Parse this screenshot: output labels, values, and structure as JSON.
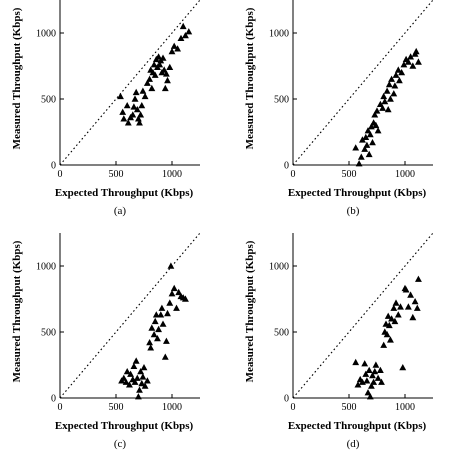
{
  "chart_data": [
    {
      "type": "scatter",
      "caption": "(a)",
      "xlabel": "Expected Throughput (Kbps)",
      "ylabel": "Measured Throughput (Kbps)",
      "xlim": [
        0,
        1250
      ],
      "ylim": [
        0,
        1250
      ],
      "xticks": [
        0,
        500,
        1000
      ],
      "yticks": [
        0,
        500,
        1000
      ],
      "reference_line": "y = x (dotted)",
      "grid": false,
      "marker": "filled-triangle",
      "points": [
        [
          540,
          520
        ],
        [
          560,
          400
        ],
        [
          570,
          350
        ],
        [
          600,
          450
        ],
        [
          610,
          320
        ],
        [
          630,
          360
        ],
        [
          650,
          380
        ],
        [
          660,
          440
        ],
        [
          670,
          500
        ],
        [
          680,
          550
        ],
        [
          690,
          420
        ],
        [
          700,
          350
        ],
        [
          710,
          320
        ],
        [
          720,
          380
        ],
        [
          730,
          450
        ],
        [
          740,
          560
        ],
        [
          760,
          520
        ],
        [
          780,
          620
        ],
        [
          800,
          650
        ],
        [
          810,
          720
        ],
        [
          820,
          580
        ],
        [
          830,
          700
        ],
        [
          840,
          760
        ],
        [
          850,
          680
        ],
        [
          860,
          800
        ],
        [
          870,
          740
        ],
        [
          880,
          820
        ],
        [
          890,
          760
        ],
        [
          900,
          790
        ],
        [
          910,
          700
        ],
        [
          920,
          810
        ],
        [
          930,
          720
        ],
        [
          940,
          580
        ],
        [
          950,
          690
        ],
        [
          960,
          640
        ],
        [
          980,
          740
        ],
        [
          1000,
          860
        ],
        [
          1020,
          900
        ],
        [
          1050,
          880
        ],
        [
          1080,
          960
        ],
        [
          1100,
          1050
        ],
        [
          1120,
          980
        ],
        [
          1150,
          1010
        ]
      ]
    },
    {
      "type": "scatter",
      "caption": "(b)",
      "xlabel": "Expected Throughput (Kbps)",
      "ylabel": "Measured Throughput (Kbps)",
      "xlim": [
        0,
        1250
      ],
      "ylim": [
        0,
        1250
      ],
      "xticks": [
        0,
        500,
        1000
      ],
      "yticks": [
        0,
        500,
        1000
      ],
      "reference_line": "y = x (dotted)",
      "grid": false,
      "marker": "filled-triangle",
      "points": [
        [
          560,
          130
        ],
        [
          590,
          10
        ],
        [
          610,
          60
        ],
        [
          620,
          190
        ],
        [
          640,
          120
        ],
        [
          650,
          210
        ],
        [
          660,
          150
        ],
        [
          670,
          260
        ],
        [
          680,
          80
        ],
        [
          690,
          230
        ],
        [
          700,
          290
        ],
        [
          710,
          170
        ],
        [
          720,
          320
        ],
        [
          730,
          380
        ],
        [
          740,
          300
        ],
        [
          750,
          410
        ],
        [
          760,
          260
        ],
        [
          780,
          460
        ],
        [
          800,
          430
        ],
        [
          810,
          520
        ],
        [
          820,
          480
        ],
        [
          840,
          560
        ],
        [
          850,
          420
        ],
        [
          860,
          610
        ],
        [
          870,
          500
        ],
        [
          880,
          650
        ],
        [
          900,
          540
        ],
        [
          910,
          600
        ],
        [
          920,
          680
        ],
        [
          940,
          720
        ],
        [
          950,
          640
        ],
        [
          970,
          700
        ],
        [
          990,
          760
        ],
        [
          1010,
          800
        ],
        [
          1030,
          780
        ],
        [
          1050,
          820
        ],
        [
          1070,
          750
        ],
        [
          1090,
          840
        ],
        [
          1100,
          860
        ],
        [
          1120,
          780
        ]
      ]
    },
    {
      "type": "scatter",
      "caption": "(c)",
      "xlabel": "Expected Throughput (Kbps)",
      "ylabel": "Measured Throughput (Kbps)",
      "xlim": [
        0,
        1250
      ],
      "ylim": [
        0,
        1250
      ],
      "xticks": [
        0,
        500,
        1000
      ],
      "yticks": [
        0,
        500,
        1000
      ],
      "reference_line": "y = x (dotted)",
      "grid": false,
      "marker": "filled-triangle",
      "points": [
        [
          550,
          130
        ],
        [
          570,
          150
        ],
        [
          590,
          120
        ],
        [
          600,
          200
        ],
        [
          620,
          100
        ],
        [
          630,
          180
        ],
        [
          650,
          140
        ],
        [
          660,
          240
        ],
        [
          670,
          120
        ],
        [
          680,
          280
        ],
        [
          690,
          150
        ],
        [
          700,
          10
        ],
        [
          710,
          60
        ],
        [
          720,
          200
        ],
        [
          730,
          110
        ],
        [
          740,
          160
        ],
        [
          750,
          230
        ],
        [
          760,
          90
        ],
        [
          780,
          130
        ],
        [
          800,
          420
        ],
        [
          810,
          380
        ],
        [
          820,
          530
        ],
        [
          840,
          480
        ],
        [
          850,
          580
        ],
        [
          860,
          630
        ],
        [
          870,
          450
        ],
        [
          880,
          520
        ],
        [
          900,
          630
        ],
        [
          910,
          680
        ],
        [
          920,
          560
        ],
        [
          940,
          310
        ],
        [
          950,
          430
        ],
        [
          960,
          640
        ],
        [
          980,
          720
        ],
        [
          990,
          1000
        ],
        [
          1000,
          790
        ],
        [
          1020,
          830
        ],
        [
          1040,
          680
        ],
        [
          1060,
          800
        ],
        [
          1080,
          770
        ],
        [
          1100,
          760
        ],
        [
          1120,
          750
        ]
      ]
    },
    {
      "type": "scatter",
      "caption": "(d)",
      "xlabel": "Expected Throughput (Kbps)",
      "ylabel": "Measured Throughput (Kbps)",
      "xlim": [
        0,
        1250
      ],
      "ylim": [
        0,
        1250
      ],
      "xticks": [
        0,
        500,
        1000
      ],
      "yticks": [
        0,
        500,
        1000
      ],
      "reference_line": "y = x (dotted)",
      "grid": false,
      "marker": "filled-triangle",
      "points": [
        [
          560,
          270
        ],
        [
          580,
          100
        ],
        [
          600,
          140
        ],
        [
          620,
          120
        ],
        [
          640,
          260
        ],
        [
          650,
          180
        ],
        [
          660,
          130
        ],
        [
          670,
          40
        ],
        [
          680,
          210
        ],
        [
          690,
          10
        ],
        [
          700,
          90
        ],
        [
          710,
          170
        ],
        [
          720,
          120
        ],
        [
          730,
          200
        ],
        [
          740,
          250
        ],
        [
          760,
          150
        ],
        [
          780,
          210
        ],
        [
          790,
          120
        ],
        [
          810,
          400
        ],
        [
          820,
          500
        ],
        [
          830,
          560
        ],
        [
          840,
          480
        ],
        [
          850,
          620
        ],
        [
          860,
          550
        ],
        [
          870,
          440
        ],
        [
          880,
          600
        ],
        [
          900,
          680
        ],
        [
          910,
          580
        ],
        [
          920,
          720
        ],
        [
          940,
          630
        ],
        [
          960,
          690
        ],
        [
          980,
          230
        ],
        [
          1000,
          830
        ],
        [
          1010,
          820
        ],
        [
          1030,
          690
        ],
        [
          1050,
          780
        ],
        [
          1070,
          610
        ],
        [
          1090,
          730
        ],
        [
          1110,
          680
        ],
        [
          1120,
          900
        ]
      ]
    }
  ]
}
